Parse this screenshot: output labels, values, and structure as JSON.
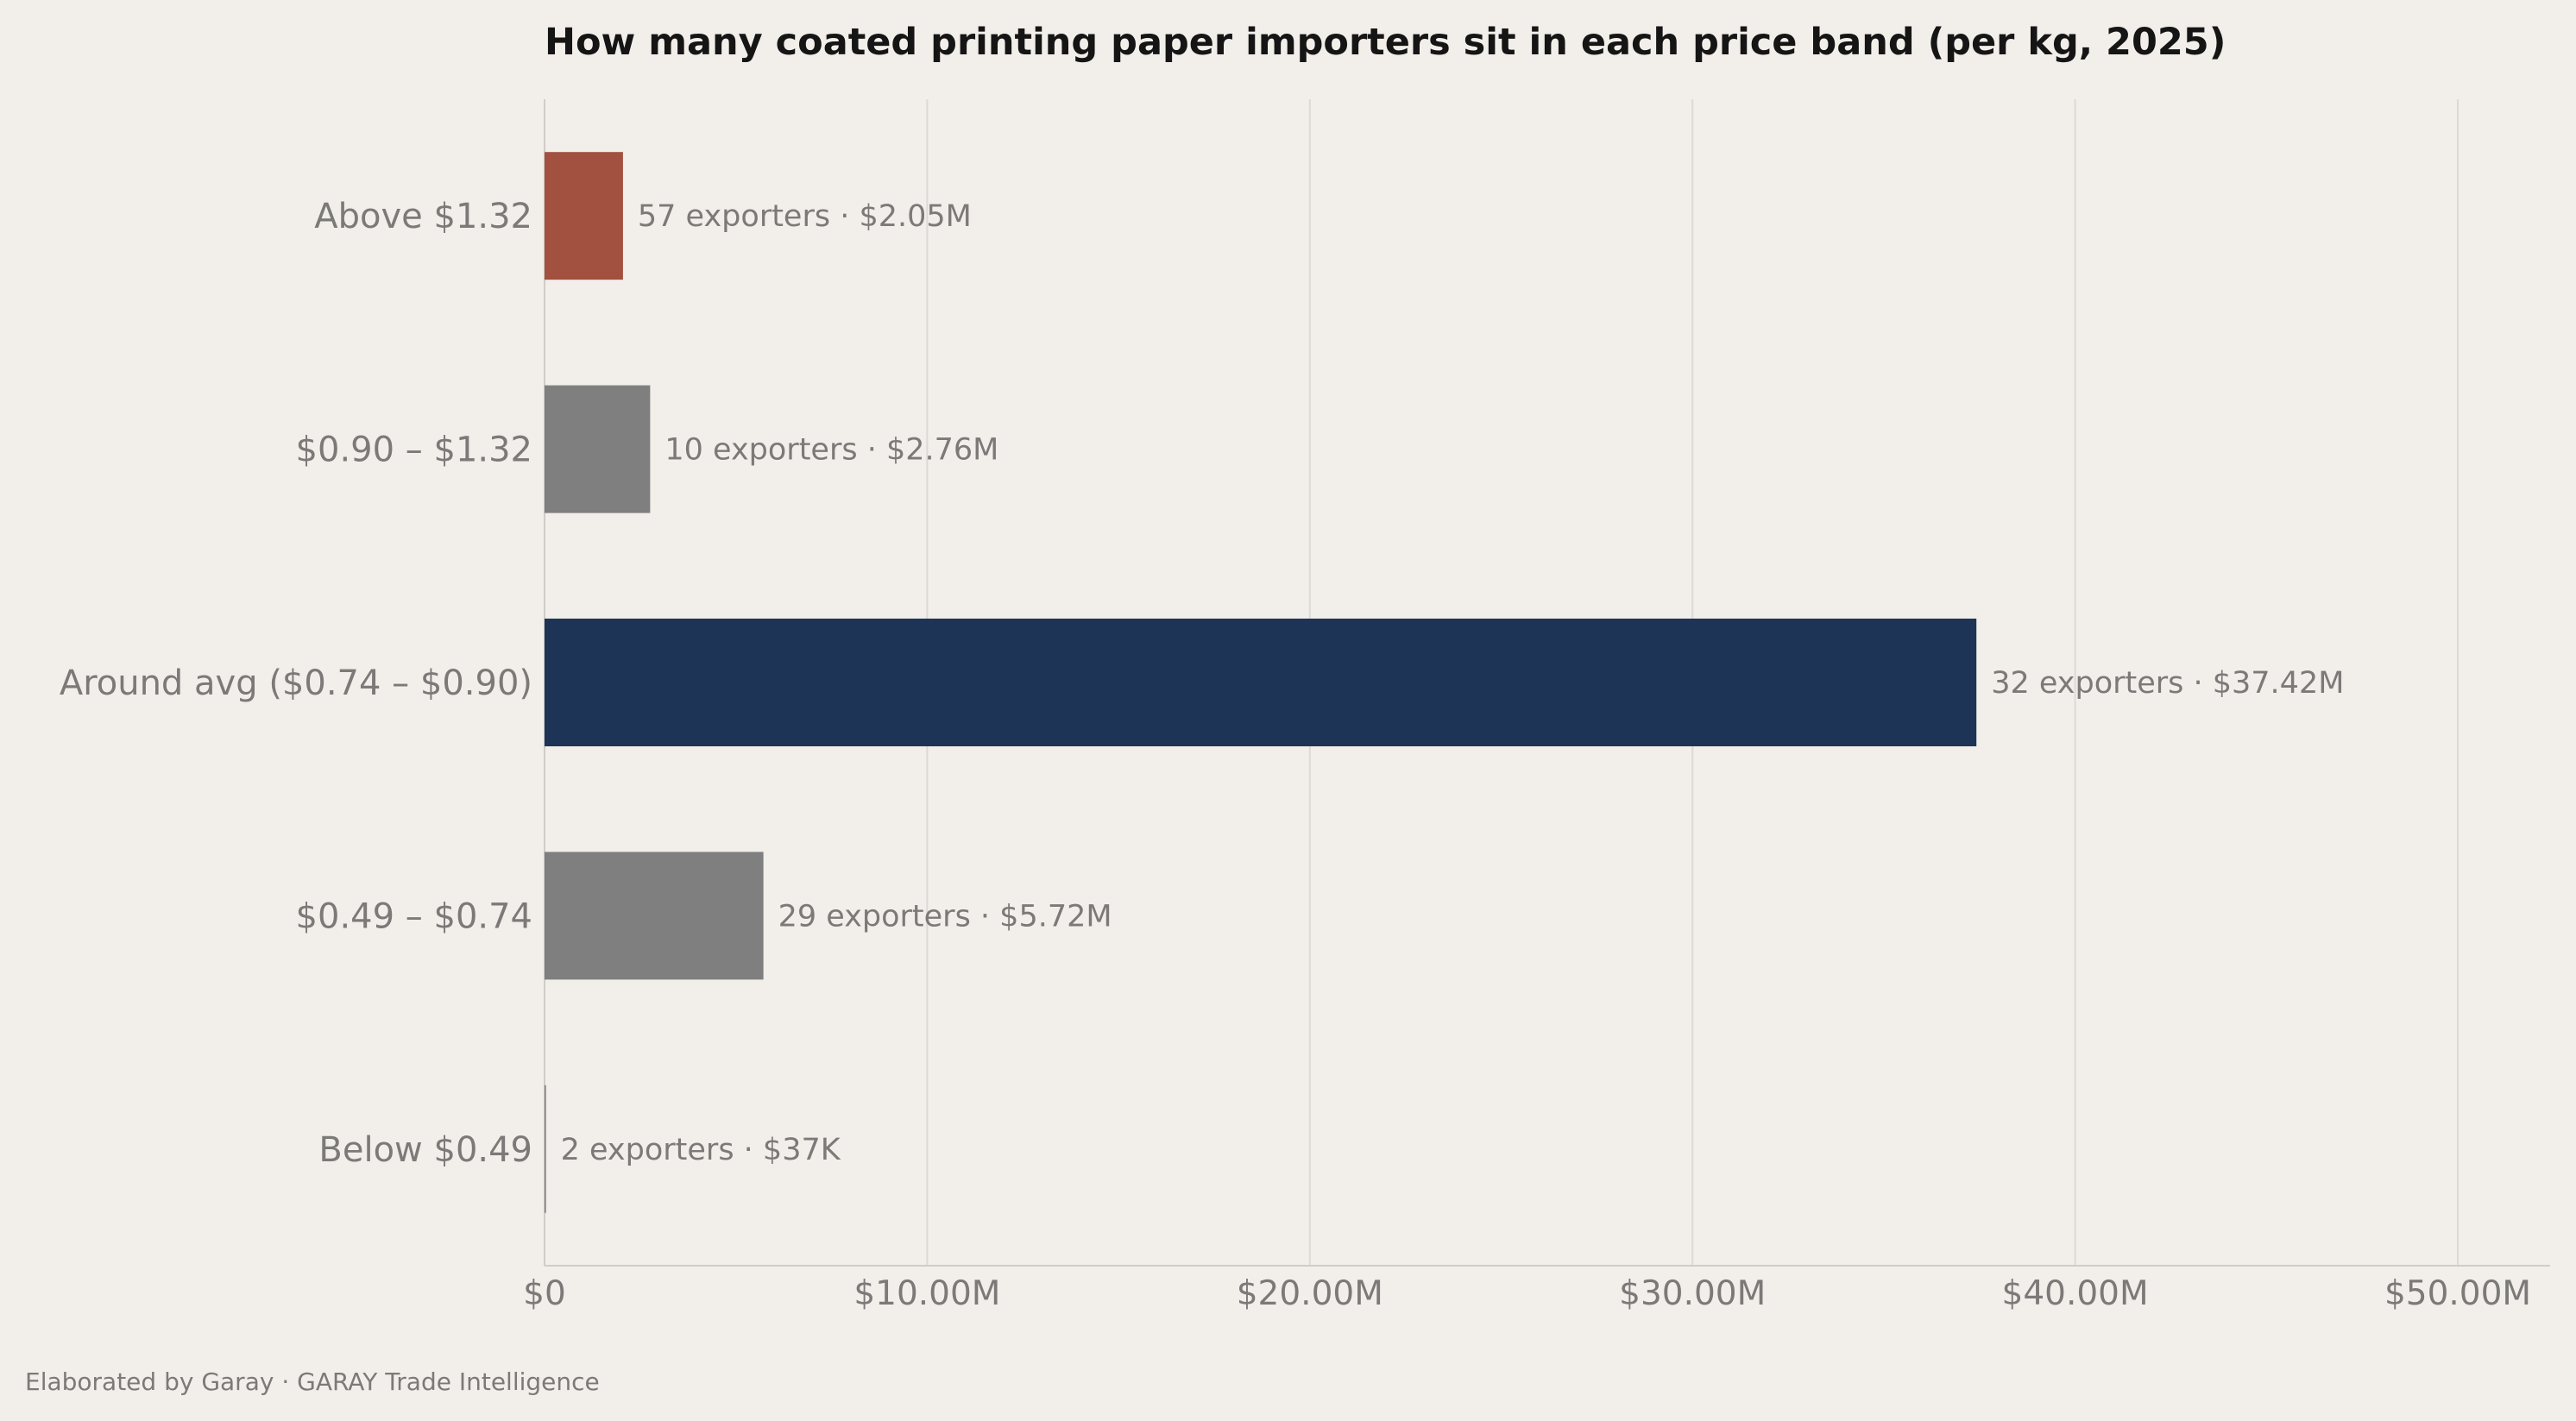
{
  "chart_data": {
    "type": "bar",
    "orientation": "horizontal",
    "title": "How many coated printing paper importers sit in each price band (per kg, 2025)",
    "categories": [
      "Above $1.32",
      "$0.90 – $1.32",
      "Around avg ($0.74 – $0.90)",
      "$0.49 – $0.74",
      "Below $0.49"
    ],
    "values": [
      2.05,
      2.76,
      37.42,
      5.72,
      0.037
    ],
    "value_unit": "$M",
    "data_labels": [
      "57 exporters  ·  $2.05M",
      "10 exporters  ·  $2.76M",
      "32 exporters  ·  $37.42M",
      "29 exporters  ·  $5.72M",
      "2 exporters  ·  $37K"
    ],
    "bar_colors": [
      "#a2503f",
      "#7f7f7f",
      "#1e3457",
      "#7f7f7f",
      "#7f7f7f"
    ],
    "xlim": [
      0,
      52.5
    ],
    "x_ticks": [
      0,
      10,
      20,
      30,
      40,
      50
    ],
    "x_tick_labels": [
      "$0",
      "$10.00M",
      "$20.00M",
      "$30.00M",
      "$40.00M",
      "$50.00M"
    ],
    "xlabel": "",
    "ylabel": "",
    "grid": "vertical",
    "legend": "none"
  },
  "footer": "Elaborated by Garay  ·  GARAY Trade Intelligence",
  "colors": {
    "background": "#f2eeea",
    "grid": "#dcd9d6",
    "axis": "#cfccc9",
    "text_muted": "#7c7a78",
    "title": "#151515"
  }
}
